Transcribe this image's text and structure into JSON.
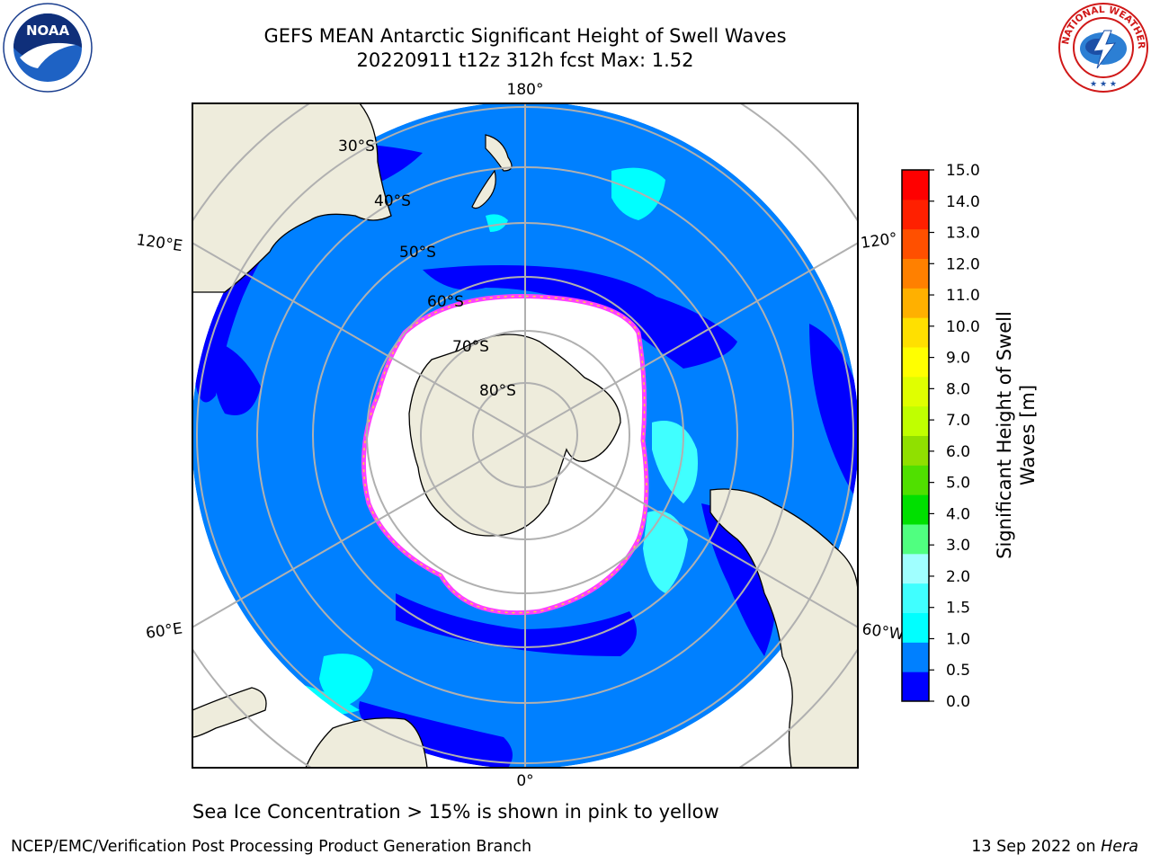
{
  "header": {
    "title_line1": "GEFS MEAN Antarctic Significant Height of Swell Waves",
    "title_line2": "20220911 t12z 312h fcst   Max: 1.52"
  },
  "logos": {
    "left": {
      "name": "noaa-logo",
      "text": "NOAA"
    },
    "right": {
      "name": "nws-logo",
      "text": "NATIONAL WEATHER SERVICE"
    }
  },
  "map": {
    "projection": "south-polar-stereographic",
    "longitude_labels": {
      "top": "180°",
      "bottom": "0°",
      "left_upper": "120°E",
      "left_lower": "60°E",
      "right_upper": "120°",
      "right_lower": "60°W"
    },
    "latitude_labels": [
      "30°S",
      "40°S",
      "50°S",
      "60°S",
      "70°S",
      "80°S"
    ],
    "colors": {
      "land": "#eeecdc",
      "ocean_low": "#0000ff",
      "ocean_mid": "#0080ff",
      "swell_high": "#00ffff",
      "ice": "#ffffff",
      "ice_edge": "#ff40ff",
      "grid": "#b0b0b0"
    }
  },
  "colorbar": {
    "label_line1": "Significant Height of Swell",
    "label_line2": "Waves [m]",
    "ticks": [
      "0.0",
      "0.5",
      "1.0",
      "1.5",
      "2.0",
      "3.0",
      "4.0",
      "5.0",
      "6.0",
      "7.0",
      "8.0",
      "9.0",
      "10.0",
      "11.0",
      "12.0",
      "13.0",
      "14.0",
      "15.0"
    ],
    "colors": [
      "#0000ff",
      "#0080ff",
      "#00ffff",
      "#40ffff",
      "#a0ffff",
      "#50ff80",
      "#00e000",
      "#50e000",
      "#90e000",
      "#c0ff00",
      "#e0ff00",
      "#ffff00",
      "#ffe000",
      "#ffb000",
      "#ff8000",
      "#ff5000",
      "#ff2000",
      "#ff0000"
    ]
  },
  "caption": "Sea Ice Concentration > 15% is shown in pink to yellow",
  "footer": {
    "left": "NCEP/EMC/Verification Post Processing Product Generation Branch",
    "right_date": "13 Sep 2022 on ",
    "right_host": "Hera"
  }
}
